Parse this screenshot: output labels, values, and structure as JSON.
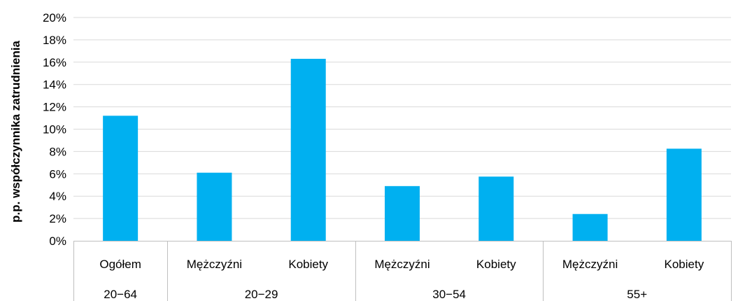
{
  "chart_data": {
    "type": "bar",
    "title": "",
    "xlabel": "",
    "ylabel": "p.p. współczynnika zatrudnienia",
    "ylim": [
      0,
      20
    ],
    "yticks": [
      "0%",
      "2%",
      "4%",
      "6%",
      "8%",
      "10%",
      "12%",
      "14%",
      "16%",
      "18%",
      "20%"
    ],
    "grid": true,
    "legend": "none",
    "bar_color": "#00B0F0",
    "categories": [
      "Ogółem",
      "Mężczyźni",
      "Kobiety",
      "Mężczyźni",
      "Kobiety",
      "Mężczyźni",
      "Kobiety"
    ],
    "groups": [
      {
        "label": "20−64",
        "size": 1
      },
      {
        "label": "20−29",
        "size": 2
      },
      {
        "label": "30−54",
        "size": 2
      },
      {
        "label": "55+",
        "size": 2
      }
    ],
    "values": [
      11.2,
      6.1,
      16.3,
      4.9,
      5.75,
      2.4,
      8.25
    ]
  }
}
